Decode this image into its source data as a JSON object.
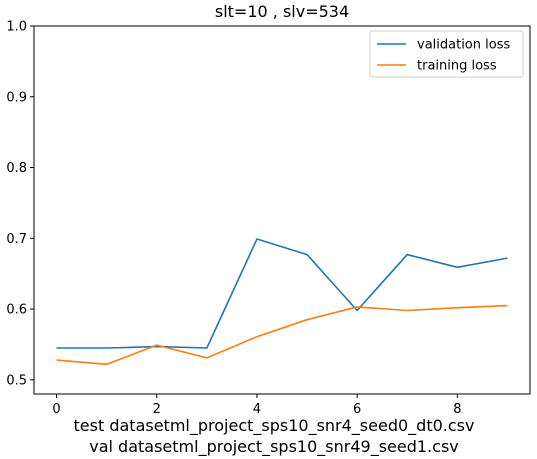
{
  "chart_data": {
    "type": "line",
    "title": "slt=10 , slv=534",
    "xlabel": "",
    "ylabel": "",
    "x": [
      0,
      1,
      2,
      3,
      4,
      5,
      6,
      7,
      8,
      9
    ],
    "xlim": [
      -0.45,
      9.45
    ],
    "ylim": [
      0.48,
      1.0
    ],
    "xticks": [
      0,
      2,
      4,
      6,
      8
    ],
    "yticks": [
      0.5,
      0.6,
      0.7,
      0.8,
      0.9,
      1.0
    ],
    "xtick_labels": [
      "0",
      "2",
      "4",
      "6",
      "8"
    ],
    "ytick_labels": [
      "0.5",
      "0.6",
      "0.7",
      "0.8",
      "0.9",
      "1.0"
    ],
    "grid": false,
    "legend": "top-right",
    "series": [
      {
        "name": "validation loss",
        "color": "#1f77b4",
        "values": [
          0.545,
          0.545,
          0.547,
          0.545,
          0.699,
          0.677,
          0.598,
          0.677,
          0.659,
          0.672
        ]
      },
      {
        "name": "training loss",
        "color": "#ff7f0e",
        "values": [
          0.528,
          0.522,
          0.549,
          0.531,
          0.561,
          0.585,
          0.603,
          0.598,
          0.602,
          0.605
        ]
      }
    ],
    "caption": [
      "test datasetml_project_sps10_snr4_seed0_dt0.csv",
      "val datasetml_project_sps10_snr49_seed1.csv"
    ]
  }
}
